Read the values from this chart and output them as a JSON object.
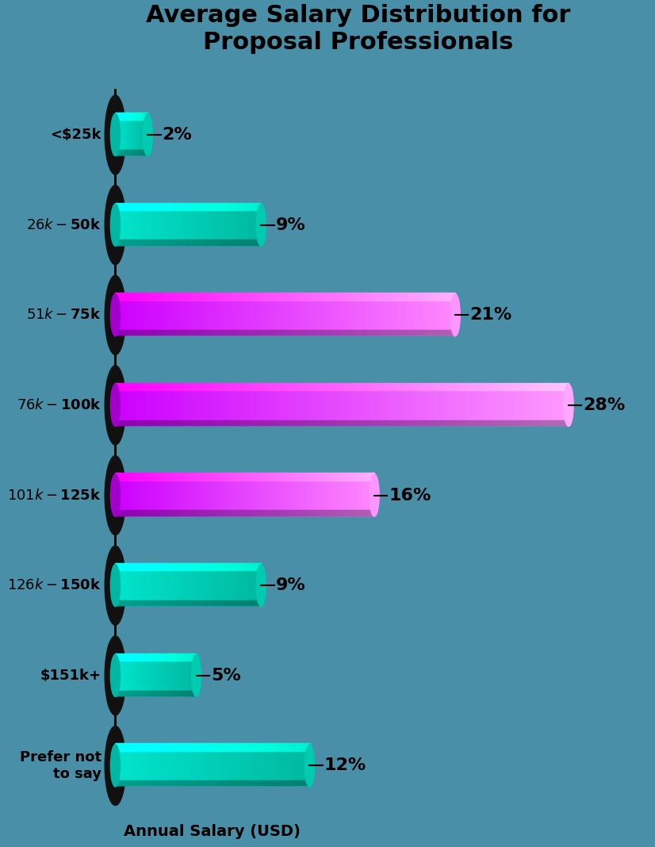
{
  "title": "Average Salary Distribution for\nProposal Professionals",
  "xlabel": "Annual Salary (USD)",
  "background_color": "#4a8fa8",
  "categories": [
    "<$25k",
    "$26k-$50k",
    "$51k-$75k",
    "$76k-$100k",
    "$101k-$125k",
    "$126k-$150k",
    "$151k+",
    "Prefer not\nto say"
  ],
  "values": [
    2,
    9,
    21,
    28,
    16,
    9,
    5,
    12
  ],
  "bar_colors": [
    [
      "#00e5cc",
      "#00b8a0"
    ],
    [
      "#00e5cc",
      "#00b8a0"
    ],
    [
      "#cc00ff",
      "#ff88ff"
    ],
    [
      "#cc00ff",
      "#ff99ff"
    ],
    [
      "#cc00ff",
      "#ff88ff"
    ],
    [
      "#00e5cc",
      "#00b8a0"
    ],
    [
      "#00e5cc",
      "#00b8a0"
    ],
    [
      "#00e5cc",
      "#00b8a0"
    ]
  ],
  "title_fontsize": 22,
  "label_fontsize": 13,
  "value_fontsize": 16,
  "xlabel_fontsize": 14,
  "text_color": "#000000"
}
